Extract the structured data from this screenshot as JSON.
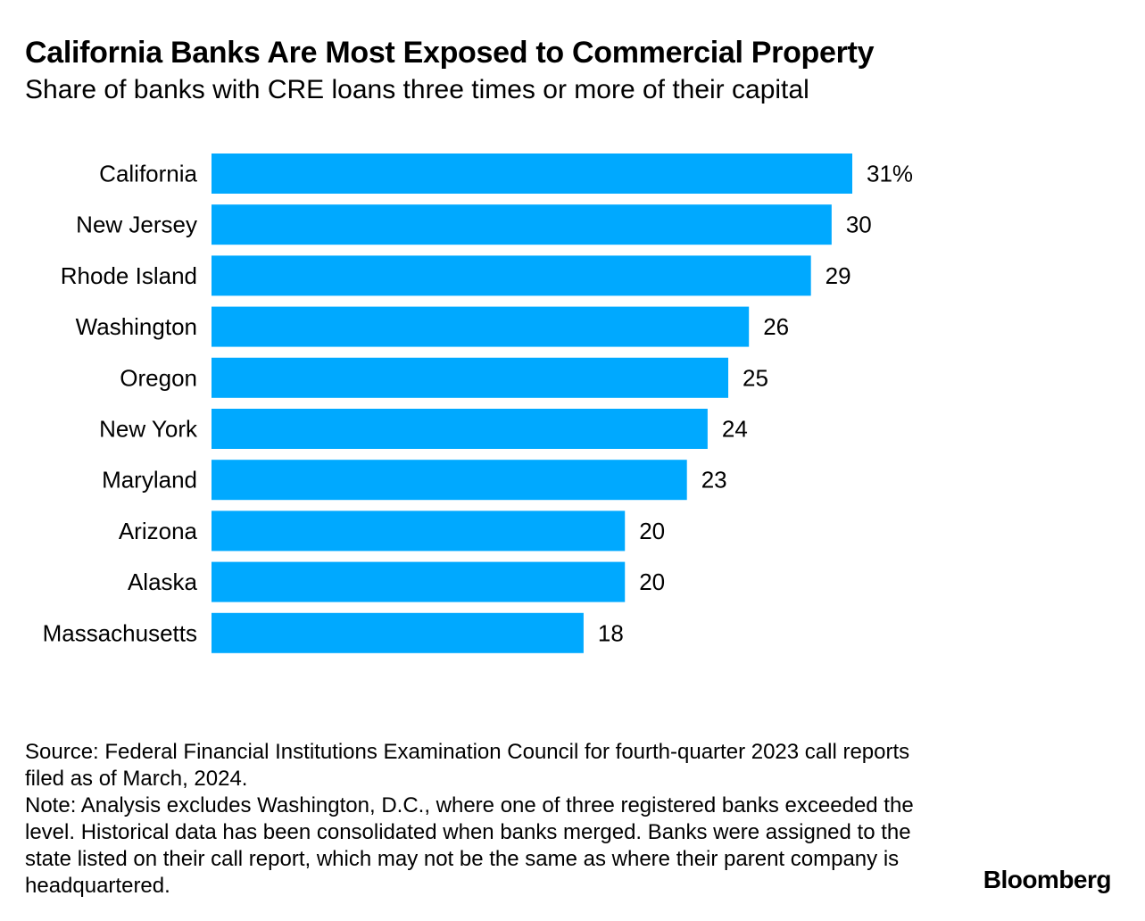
{
  "header": {
    "title": "California Banks Are Most Exposed to Commercial Property",
    "subtitle": "Share of banks with CRE loans three times or more of their capital"
  },
  "chart_data": {
    "type": "bar",
    "orientation": "horizontal",
    "title": "California Banks Are Most Exposed to Commercial Property",
    "subtitle": "Share of banks with CRE loans three times or more of their capital",
    "categories": [
      "California",
      "New Jersey",
      "Rhode Island",
      "Washington",
      "Oregon",
      "New York",
      "Maryland",
      "Arizona",
      "Alaska",
      "Massachusetts"
    ],
    "values": [
      31,
      30,
      29,
      26,
      25,
      24,
      23,
      20,
      20,
      18
    ],
    "value_labels": [
      "31%",
      "30",
      "29",
      "26",
      "25",
      "24",
      "23",
      "20",
      "20",
      "18"
    ],
    "unit": "%",
    "bar_color": "#00A9FF",
    "xlim": [
      0,
      31
    ],
    "xlabel": "",
    "ylabel": "",
    "grid": false,
    "legend": "none"
  },
  "footer": {
    "source": "Source: Federal Financial Institutions Examination Council for fourth-quarter 2023 call reports filed as of March, 2024.",
    "note": "Note: Analysis excludes Washington, D.C., where one of three registered banks exceeded the level. Historical data has been consolidated when banks merged. Banks were assigned to the state listed on their call report, which may not be the same as where their parent company is headquartered.",
    "brand": "Bloomberg"
  }
}
